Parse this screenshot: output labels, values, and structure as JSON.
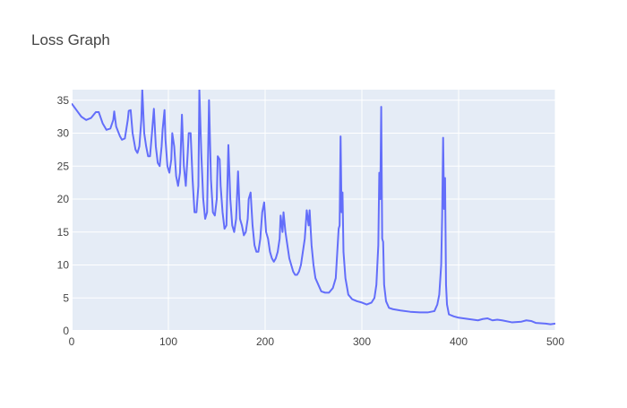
{
  "chart_data": {
    "type": "line",
    "title": "Loss Graph",
    "x": [
      0,
      5,
      10,
      15,
      20,
      25,
      28,
      32,
      36,
      40,
      43,
      44,
      46,
      50,
      52,
      55,
      58,
      59,
      61,
      63,
      66,
      68,
      70,
      72,
      73,
      75,
      77,
      79,
      81,
      83,
      85,
      87,
      89,
      91,
      93,
      94,
      96,
      97,
      99,
      101,
      103,
      104,
      106,
      108,
      110,
      112,
      114,
      116,
      118,
      120,
      121,
      123,
      125,
      127,
      129,
      131,
      132,
      134,
      136,
      138,
      140,
      142,
      144,
      146,
      148,
      150,
      151,
      153,
      154,
      156,
      158,
      160,
      162,
      164,
      166,
      168,
      170,
      172,
      174,
      176,
      178,
      180,
      182,
      183,
      185,
      187,
      189,
      191,
      193,
      195,
      197,
      199,
      201,
      203,
      205,
      207,
      209,
      211,
      213,
      215,
      216,
      218,
      219,
      221,
      223,
      225,
      227,
      229,
      231,
      233,
      235,
      237,
      239,
      241,
      243,
      245,
      246,
      248,
      250,
      252,
      255,
      258,
      262,
      266,
      270,
      273,
      276,
      277,
      278,
      279,
      280,
      281,
      283,
      286,
      290,
      295,
      300,
      305,
      310,
      313,
      315,
      317,
      318,
      319,
      320,
      321,
      322,
      323,
      325,
      328,
      332,
      340,
      350,
      360,
      368,
      375,
      378,
      380,
      382,
      383,
      384,
      385,
      386,
      387,
      388,
      390,
      395,
      400,
      410,
      420,
      425,
      430,
      435,
      440,
      445,
      455,
      465,
      470,
      475,
      480,
      490,
      495,
      500
    ],
    "series": [
      {
        "color": "#636efa",
        "values": [
          34.5,
          33.5,
          32.5,
          32,
          32.3,
          33.2,
          33.2,
          31.5,
          30.5,
          30.7,
          32,
          33.3,
          31,
          29.5,
          29,
          29.2,
          32,
          33.4,
          33.5,
          30,
          27.5,
          27,
          28,
          32,
          36.6,
          30,
          28,
          26.5,
          26.5,
          30,
          33.7,
          28,
          25.5,
          25,
          28,
          30.5,
          33.5,
          29,
          25,
          24,
          26,
          30,
          28,
          23.5,
          22,
          24,
          32.8,
          25,
          22,
          27,
          30,
          30,
          23,
          18,
          18,
          22,
          36.6,
          27,
          20,
          17,
          18,
          35,
          23,
          18,
          17.5,
          20,
          26.5,
          26,
          22,
          18,
          15.5,
          16,
          28.2,
          20,
          16,
          15,
          17,
          24.2,
          17,
          16,
          14.5,
          15,
          17,
          20,
          21,
          16,
          13,
          12,
          12,
          14,
          18,
          19.5,
          15,
          14,
          12,
          11,
          10.5,
          11,
          12,
          14,
          17.5,
          15,
          18,
          15,
          13,
          11,
          10,
          9,
          8.5,
          8.5,
          9,
          10,
          12,
          14,
          18.3,
          16,
          18.3,
          13,
          10,
          8,
          7,
          6,
          5.8,
          5.8,
          6.5,
          8,
          15.5,
          16,
          29.5,
          18,
          21,
          12,
          8,
          5.5,
          4.8,
          4.5,
          4.3,
          4,
          4.3,
          5,
          7,
          13,
          24,
          20,
          34,
          14,
          13.5,
          7,
          4.5,
          3.5,
          3.3,
          3.1,
          2.9,
          2.8,
          2.8,
          3,
          4,
          5.5,
          10,
          17.5,
          29.3,
          18.5,
          23.2,
          7,
          4,
          2.5,
          2.2,
          2,
          1.8,
          1.6,
          1.8,
          1.9,
          1.6,
          1.7,
          1.6,
          1.3,
          1.4,
          1.6,
          1.5,
          1.2,
          1.1,
          1,
          1.1
        ]
      }
    ],
    "xlim": [
      0,
      500
    ],
    "xticks": [
      0,
      100,
      200,
      300,
      400,
      500
    ],
    "ylim": [
      0,
      36.6
    ],
    "yticks": [
      0,
      5,
      10,
      15,
      20,
      25,
      30,
      35
    ],
    "grid": true
  }
}
